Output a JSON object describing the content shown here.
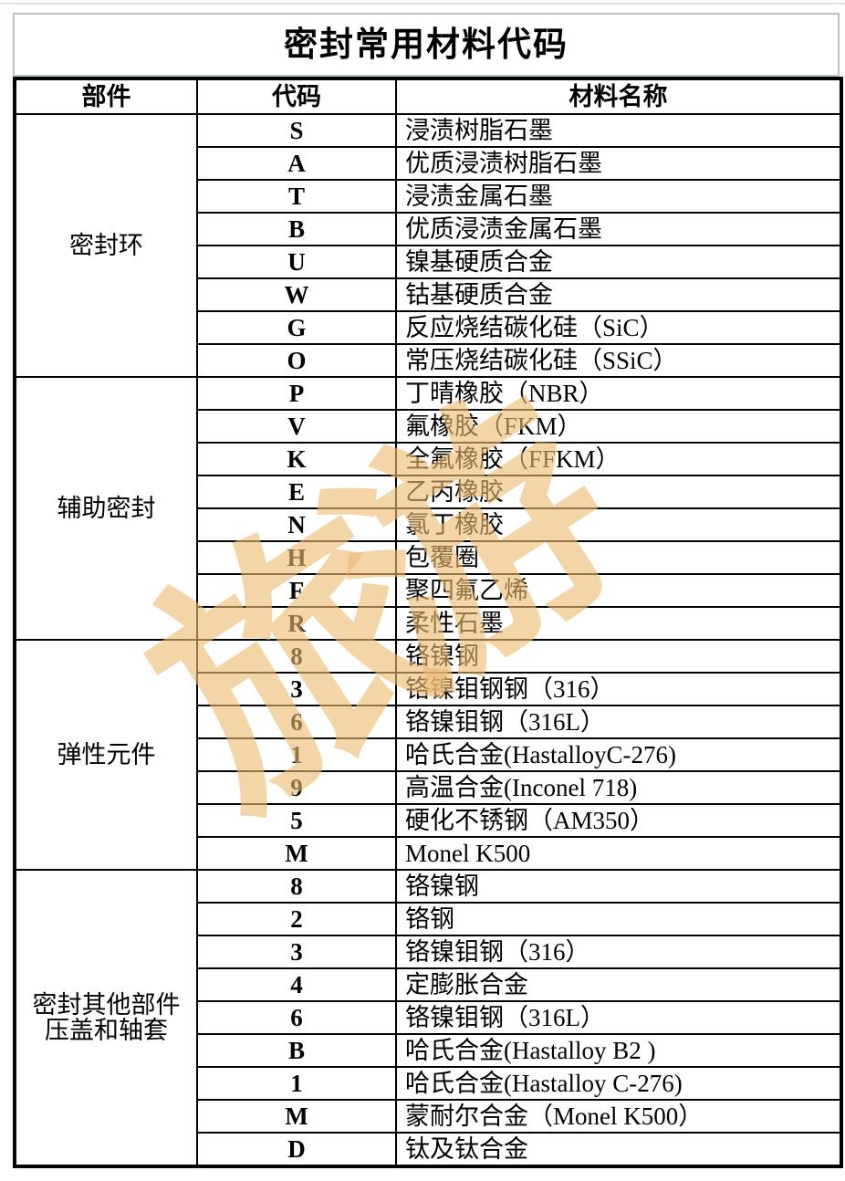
{
  "title": "密封常用材料代码",
  "table": {
    "headers": [
      "部件",
      "代码",
      "材料名称"
    ],
    "sections": [
      {
        "part": "密封环",
        "rows": [
          {
            "code": "S",
            "material": "浸渍树脂石墨"
          },
          {
            "code": "A",
            "material": "优质浸渍树脂石墨"
          },
          {
            "code": "T",
            "material": "浸渍金属石墨"
          },
          {
            "code": "B",
            "material": "优质浸渍金属石墨"
          },
          {
            "code": "U",
            "material": "镍基硬质合金"
          },
          {
            "code": "W",
            "material": "钴基硬质合金"
          },
          {
            "code": "G",
            "material": "反应烧结碳化硅（SiC）"
          },
          {
            "code": "O",
            "material": "常压烧结碳化硅（SSiC）"
          }
        ]
      },
      {
        "part": "辅助密封",
        "rows": [
          {
            "code": "P",
            "material": "丁晴橡胶（NBR）"
          },
          {
            "code": "V",
            "material": "氟橡胶（FKM）"
          },
          {
            "code": "K",
            "material": "全氟橡胶（FFKM）"
          },
          {
            "code": "E",
            "material": "乙丙橡胶"
          },
          {
            "code": "N",
            "material": "氯丁橡胶"
          },
          {
            "code": "H",
            "material": "包覆圈"
          },
          {
            "code": "F",
            "material": "聚四氟乙烯"
          },
          {
            "code": "R",
            "material": "柔性石墨"
          }
        ]
      },
      {
        "part": "弹性元件",
        "rows": [
          {
            "code": "8",
            "material": "铬镍钢"
          },
          {
            "code": "3",
            "material": "铬镍钼钢钢（316）"
          },
          {
            "code": "6",
            "material": "铬镍钼钢（316L）"
          },
          {
            "code": "1",
            "material": "哈氏合金(HastalloyC-276)"
          },
          {
            "code": "9",
            "material": "高温合金(Inconel 718)"
          },
          {
            "code": "5",
            "material": "硬化不锈钢（AM350）"
          },
          {
            "code": "M",
            "material": "Monel K500"
          }
        ]
      },
      {
        "part": "密封其他部件\n压盖和轴套",
        "rows": [
          {
            "code": "8",
            "material": "铬镍钢"
          },
          {
            "code": "2",
            "material": "铬钢"
          },
          {
            "code": "3",
            "material": "铬镍钼钢（316）"
          },
          {
            "code": "4",
            "material": "定膨胀合金"
          },
          {
            "code": "6",
            "material": "铬镍钼钢（316L）"
          },
          {
            "code": "B",
            "material": "哈氏合金(Hastalloy B2 )"
          },
          {
            "code": "1",
            "material": "哈氏合金(Hastalloy C-276)"
          },
          {
            "code": "M",
            "material": "蒙耐尔合金（Monel K500）"
          },
          {
            "code": "D",
            "material": "钛及钛合金"
          }
        ]
      }
    ]
  },
  "watermark": {
    "text": "旅游",
    "color": "#ebbc73"
  },
  "colors": {
    "grid_border": "#000000",
    "title_border": "#b9c6b9",
    "page_top_line": "#dfe8df",
    "background": "#ffffff"
  }
}
